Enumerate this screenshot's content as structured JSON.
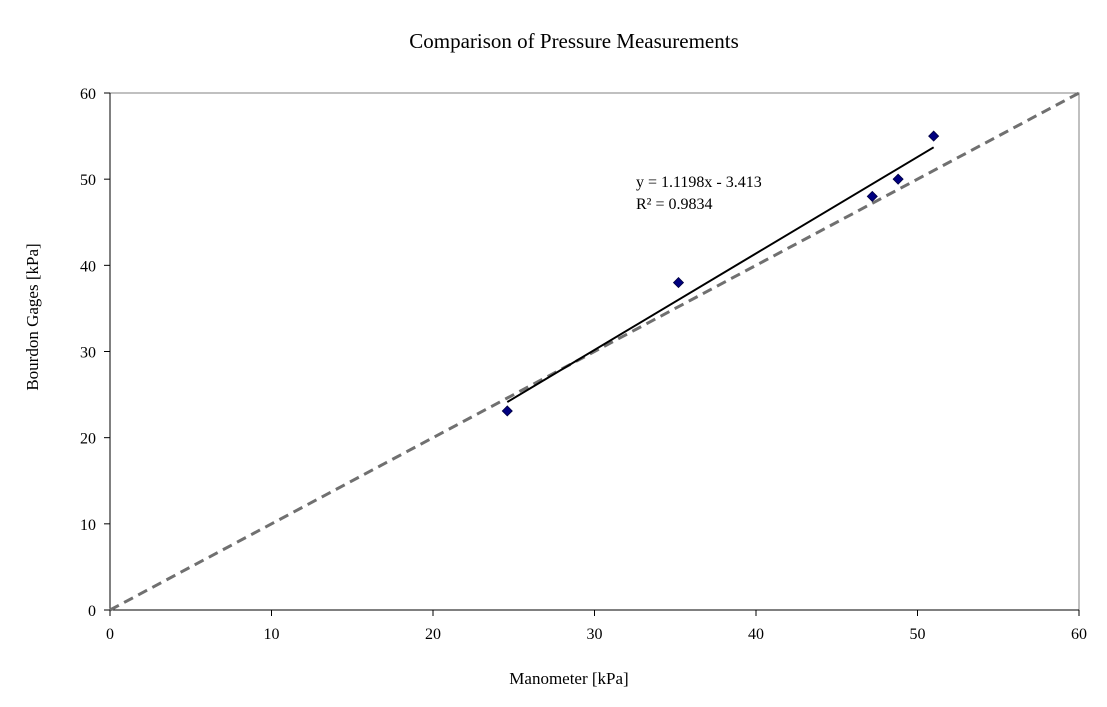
{
  "chart_data": {
    "type": "scatter",
    "title": "Comparison of Pressure Measurements",
    "xlabel": "Manometer [kPa]",
    "ylabel": "Bourdon Gages [kPa]",
    "xlim": [
      0,
      60
    ],
    "ylim": [
      0,
      60
    ],
    "x_ticks": [
      0,
      10,
      20,
      30,
      40,
      50,
      60
    ],
    "y_ticks": [
      0,
      10,
      20,
      30,
      40,
      50,
      60
    ],
    "grid": false,
    "series": [
      {
        "marker": "diamond",
        "color": "#000080",
        "points": [
          {
            "x": 24.6,
            "y": 23.1
          },
          {
            "x": 35.2,
            "y": 38.0
          },
          {
            "x": 47.2,
            "y": 48.0
          },
          {
            "x": 48.8,
            "y": 50.0
          },
          {
            "x": 51.0,
            "y": 55.0
          }
        ]
      }
    ],
    "trendline": {
      "type": "linear",
      "slope": 1.1198,
      "intercept": -3.413,
      "x_range": [
        24.6,
        51.0
      ],
      "color": "#000000",
      "equation_label": "y = 1.1198x - 3.413",
      "r2_label": "R² = 0.9834"
    },
    "reference_line": {
      "style": "dashed",
      "color": "#707070",
      "points": [
        {
          "x": 0,
          "y": 0
        },
        {
          "x": 60,
          "y": 60
        }
      ]
    }
  }
}
